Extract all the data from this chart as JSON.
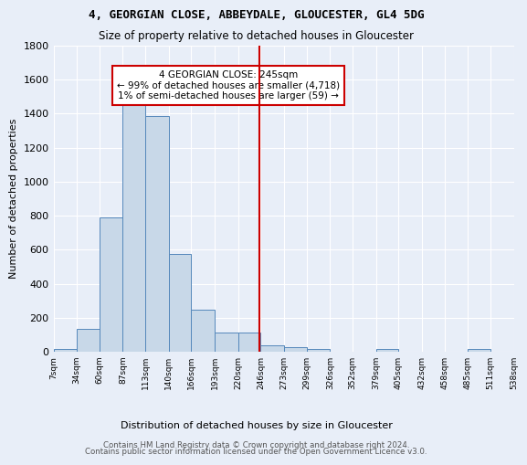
{
  "title1": "4, GEORGIAN CLOSE, ABBEYDALE, GLOUCESTER, GL4 5DG",
  "title2": "Size of property relative to detached houses in Gloucester",
  "xlabel": "Distribution of detached houses by size in Gloucester",
  "ylabel": "Number of detached properties",
  "footer1": "Contains HM Land Registry data © Crown copyright and database right 2024.",
  "footer2": "Contains public sector information licensed under the Open Government Licence v3.0.",
  "annotation_title": "4 GEORGIAN CLOSE: 245sqm",
  "annotation_line1": "← 99% of detached houses are smaller (4,718)",
  "annotation_line2": "1% of semi-detached houses are larger (59) →",
  "property_size": 245,
  "bar_edges": [
    7,
    34,
    60,
    87,
    113,
    140,
    166,
    193,
    220,
    246,
    273,
    299,
    326,
    352,
    379,
    405,
    432,
    458,
    485,
    511,
    538
  ],
  "bar_heights": [
    15,
    135,
    790,
    1470,
    1385,
    575,
    245,
    115,
    115,
    35,
    25,
    15,
    0,
    0,
    15,
    0,
    0,
    0,
    15,
    0
  ],
  "bar_color": "#c8d8e8",
  "bar_edge_color": "#5588bb",
  "vline_color": "#cc0000",
  "background_color": "#e8eef8",
  "grid_color": "#ffffff",
  "annotation_box_color": "#ffffff",
  "annotation_box_edge": "#cc0000"
}
